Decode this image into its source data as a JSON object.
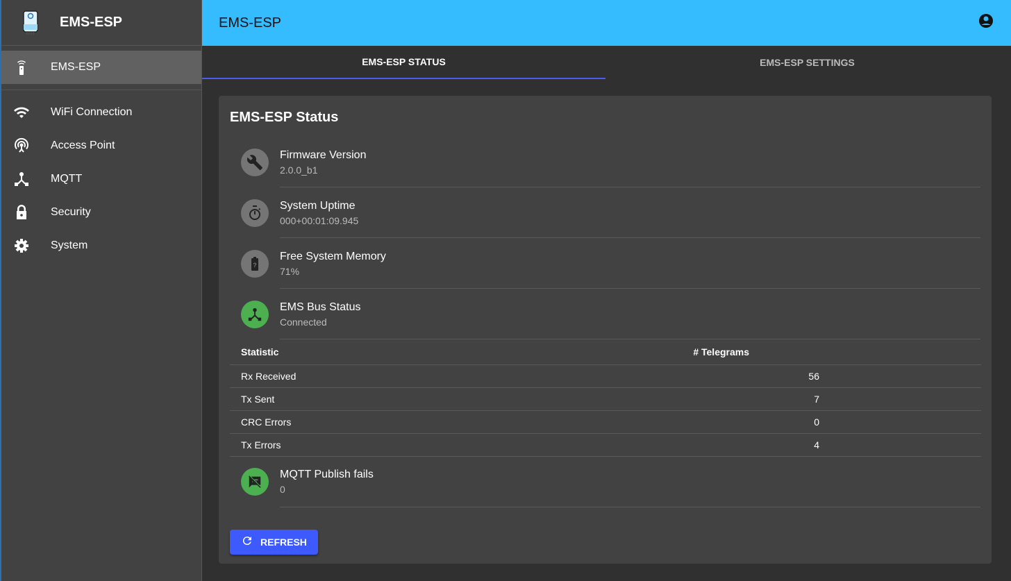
{
  "app": {
    "title": "EMS-ESP"
  },
  "sidebar": {
    "items": [
      {
        "label": "EMS-ESP",
        "icon": "remote-icon"
      },
      {
        "label": "WiFi Connection",
        "icon": "wifi-icon"
      },
      {
        "label": "Access Point",
        "icon": "access-point-icon"
      },
      {
        "label": "MQTT",
        "icon": "device-hub-icon"
      },
      {
        "label": "Security",
        "icon": "lock-icon"
      },
      {
        "label": "System",
        "icon": "gear-icon"
      }
    ]
  },
  "header": {
    "title": "EMS-ESP"
  },
  "tabs": [
    {
      "label": "EMS-ESP STATUS"
    },
    {
      "label": "EMS-ESP SETTINGS"
    }
  ],
  "card": {
    "title": "EMS-ESP Status",
    "items": [
      {
        "primary": "Firmware Version",
        "secondary": "2.0.0_b1"
      },
      {
        "primary": "System Uptime",
        "secondary": "000+00:01:09.945"
      },
      {
        "primary": "Free System Memory",
        "secondary": "71%"
      },
      {
        "primary": "EMS Bus Status",
        "secondary": "Connected"
      }
    ],
    "table": {
      "headers": [
        "Statistic",
        "# Telegrams"
      ],
      "rows": [
        [
          "Rx Received",
          "56"
        ],
        [
          "Tx Sent",
          "7"
        ],
        [
          "CRC Errors",
          "0"
        ],
        [
          "Tx Errors",
          "4"
        ]
      ]
    },
    "mqtt": {
      "primary": "MQTT Publish fails",
      "secondary": "0"
    },
    "refresh_label": "REFRESH"
  },
  "colors": {
    "header": "#35bcff",
    "accent": "#3d5afe",
    "ok": "#4caf50"
  }
}
